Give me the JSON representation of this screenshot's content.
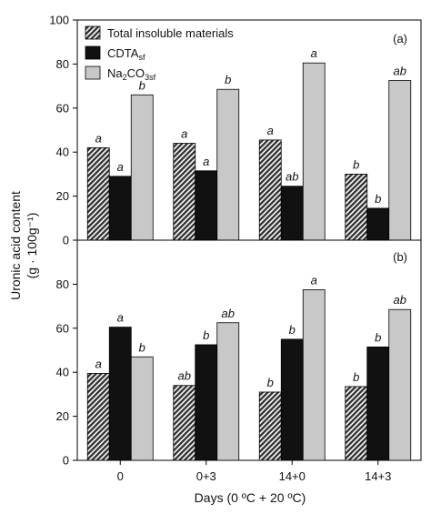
{
  "chart_data": [
    {
      "type": "bar",
      "panel_label": "(a)",
      "categories": [
        "0",
        "0+3",
        "14+0",
        "14+3"
      ],
      "ylim": [
        0,
        100
      ],
      "yticks": [
        "0",
        "20",
        "40",
        "60",
        "80",
        "100"
      ],
      "series": [
        {
          "name": "Total insoluble materials",
          "values": [
            42,
            44,
            45.5,
            30
          ],
          "labels": [
            "a",
            "a",
            "a",
            "b"
          ],
          "fill": "hatch"
        },
        {
          "name": "CDTA",
          "subscript": "sf",
          "values": [
            29,
            31.5,
            24.5,
            14.5
          ],
          "labels": [
            "a",
            "a",
            "ab",
            "b"
          ],
          "fill": "#111111"
        },
        {
          "name": "Na",
          "name_parts": [
            "Na",
            "2",
            "CO",
            "3sf"
          ],
          "values": [
            66,
            68.5,
            80.5,
            72.5
          ],
          "labels": [
            "b",
            "b",
            "a",
            "ab"
          ],
          "fill": "#c8c8c8"
        }
      ],
      "legend": "top-left"
    },
    {
      "type": "bar",
      "panel_label": "(b)",
      "categories": [
        "0",
        "0+3",
        "14+0",
        "14+3"
      ],
      "ylim": [
        0,
        100
      ],
      "yticks": [
        "0",
        "20",
        "40",
        "60",
        "80"
      ],
      "series": [
        {
          "name": "Total insoluble materials",
          "values": [
            39.5,
            34,
            31,
            33.5
          ],
          "labels": [
            "a",
            "ab",
            "b",
            "b"
          ],
          "fill": "hatch"
        },
        {
          "name": "CDTA",
          "values": [
            60.5,
            52.5,
            55,
            51.5
          ],
          "labels": [
            "a",
            "b",
            "b",
            "b"
          ],
          "fill": "#111111"
        },
        {
          "name": "Na2CO3sf",
          "values": [
            47,
            62.5,
            77.5,
            68.5
          ],
          "labels": [
            "b",
            "ab",
            "a",
            "ab"
          ],
          "fill": "#c8c8c8"
        }
      ]
    }
  ],
  "ylabel_line1": "Uronic acid content",
  "ylabel_line2": "(g · 100g⁻¹)",
  "xlabel": "Days (0 ºC + 20 ºC)",
  "colors": {
    "hatch": "#333333",
    "dark": "#111111",
    "light": "#c8c8c8",
    "axis": "#000000"
  }
}
